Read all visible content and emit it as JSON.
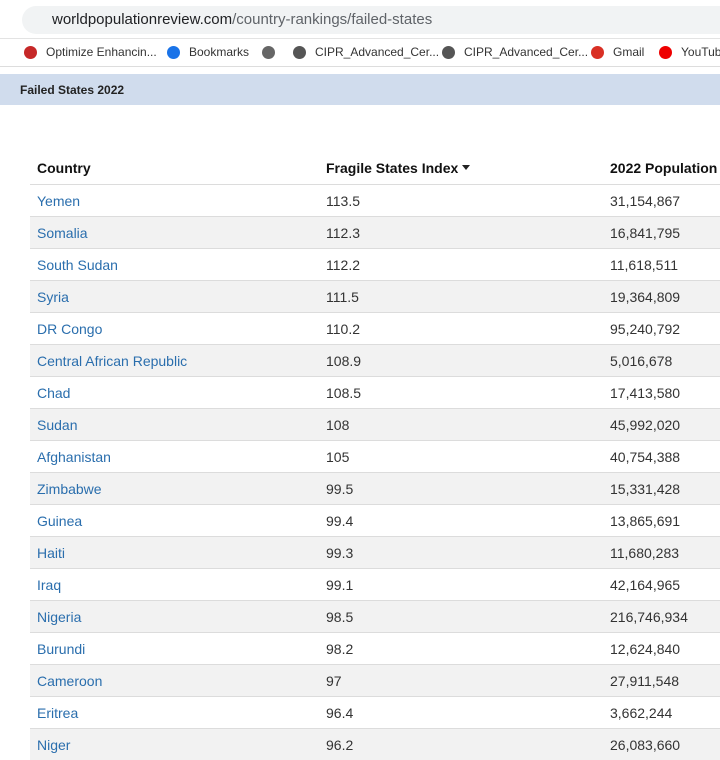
{
  "browser": {
    "url_domain": "worldpopulationreview.com",
    "url_path": "/country-rankings/failed-states",
    "bookmarks": [
      "Optimize Enhancin...",
      "Bookmarks",
      "CIPR_Advanced_Cer...",
      "CIPR_Advanced_Cer...",
      "Gmail",
      "YouTube"
    ]
  },
  "header": {
    "title": "Failed States 2022"
  },
  "table": {
    "columns": [
      "Country",
      "Fragile States Index",
      "2022 Population"
    ],
    "rows": [
      [
        "Yemen",
        "113.5",
        "31,154,867"
      ],
      [
        "Somalia",
        "112.3",
        "16,841,795"
      ],
      [
        "South Sudan",
        "112.2",
        "11,618,511"
      ],
      [
        "Syria",
        "111.5",
        "19,364,809"
      ],
      [
        "DR Congo",
        "110.2",
        "95,240,792"
      ],
      [
        "Central African Republic",
        "108.9",
        "5,016,678"
      ],
      [
        "Chad",
        "108.5",
        "17,413,580"
      ],
      [
        "Sudan",
        "108",
        "45,992,020"
      ],
      [
        "Afghanistan",
        "105",
        "40,754,388"
      ],
      [
        "Zimbabwe",
        "99.5",
        "15,331,428"
      ],
      [
        "Guinea",
        "99.4",
        "13,865,691"
      ],
      [
        "Haiti",
        "99.3",
        "11,680,283"
      ],
      [
        "Iraq",
        "99.1",
        "42,164,965"
      ],
      [
        "Nigeria",
        "98.5",
        "216,746,934"
      ],
      [
        "Burundi",
        "98.2",
        "12,624,840"
      ],
      [
        "Cameroon",
        "97",
        "27,911,548"
      ],
      [
        "Eritrea",
        "96.4",
        "3,662,244"
      ],
      [
        "Niger",
        "96.2",
        "26,083,660"
      ]
    ]
  }
}
